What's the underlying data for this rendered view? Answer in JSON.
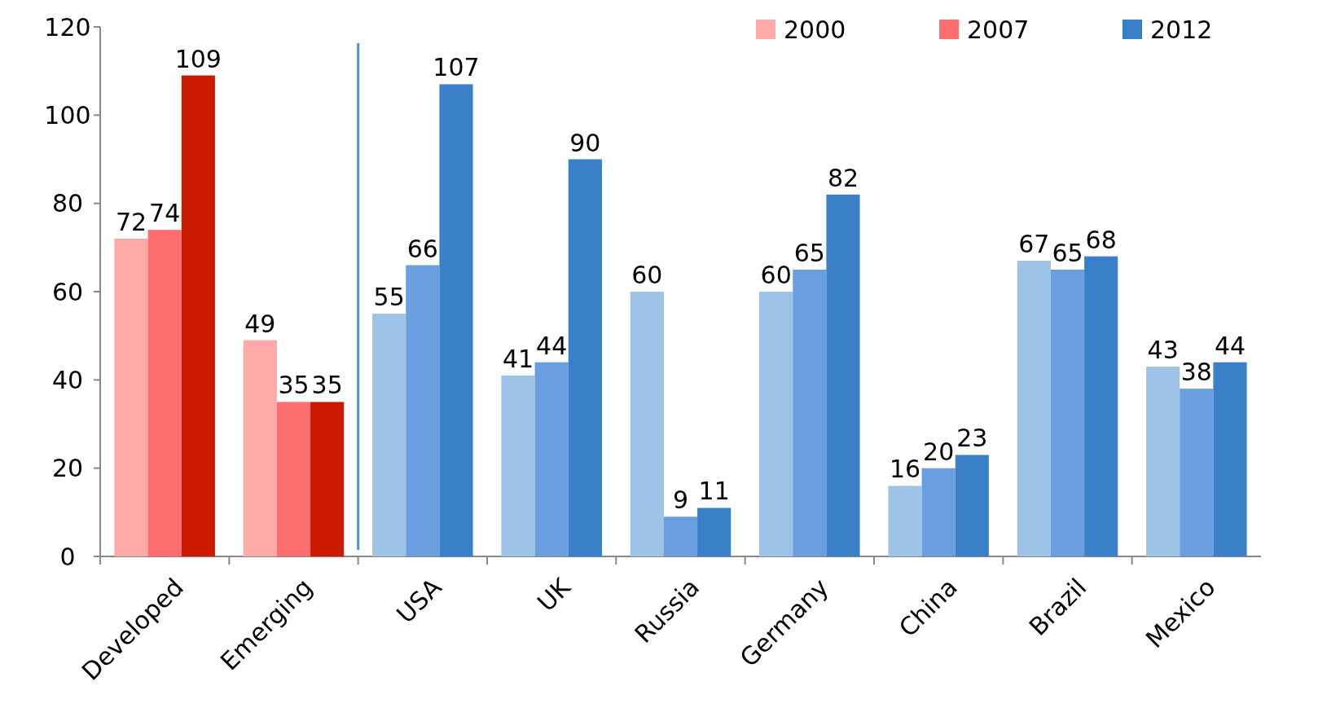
{
  "chart_data": {
    "type": "bar",
    "categories": [
      "Developed",
      "Emerging",
      "USA",
      "UK",
      "Russia",
      "Germany",
      "China",
      "Brazil",
      "Mexico"
    ],
    "series": [
      {
        "name": "2000",
        "color": "#ffa9a9",
        "colors": [
          "#ffa9a9",
          "#ffa9a9",
          "#9dc3e6",
          "#9dc3e6",
          "#9dc3e6",
          "#9dc3e6",
          "#9dc3e6",
          "#9dc3e6",
          "#9dc3e6"
        ],
        "values": [
          72,
          49,
          55,
          41,
          60,
          60,
          16,
          67,
          43
        ]
      },
      {
        "name": "2007",
        "color": "#ff6e6e",
        "colors": [
          "#ff6e6e",
          "#ff6e6e",
          "#6a9fdf",
          "#6a9fdf",
          "#6a9fdf",
          "#6a9fdf",
          "#6a9fdf",
          "#6a9fdf",
          "#6a9fdf"
        ],
        "values": [
          74,
          35,
          66,
          44,
          9,
          65,
          20,
          65,
          38
        ]
      },
      {
        "name": "2012",
        "color": "#3a80c9",
        "colors": [
          "#cc1a00",
          "#cc1a00",
          "#3a80c9",
          "#3a80c9",
          "#3a80c9",
          "#3a80c9",
          "#3a80c9",
          "#3a80c9",
          "#3a80c9"
        ],
        "values": [
          109,
          35,
          107,
          90,
          11,
          82,
          23,
          68,
          44
        ]
      }
    ],
    "ylim": [
      0,
      120
    ],
    "yticks": [
      0,
      20,
      40,
      60,
      80,
      100,
      120
    ],
    "grid": false,
    "legend": "top right",
    "data_labels": true
  }
}
